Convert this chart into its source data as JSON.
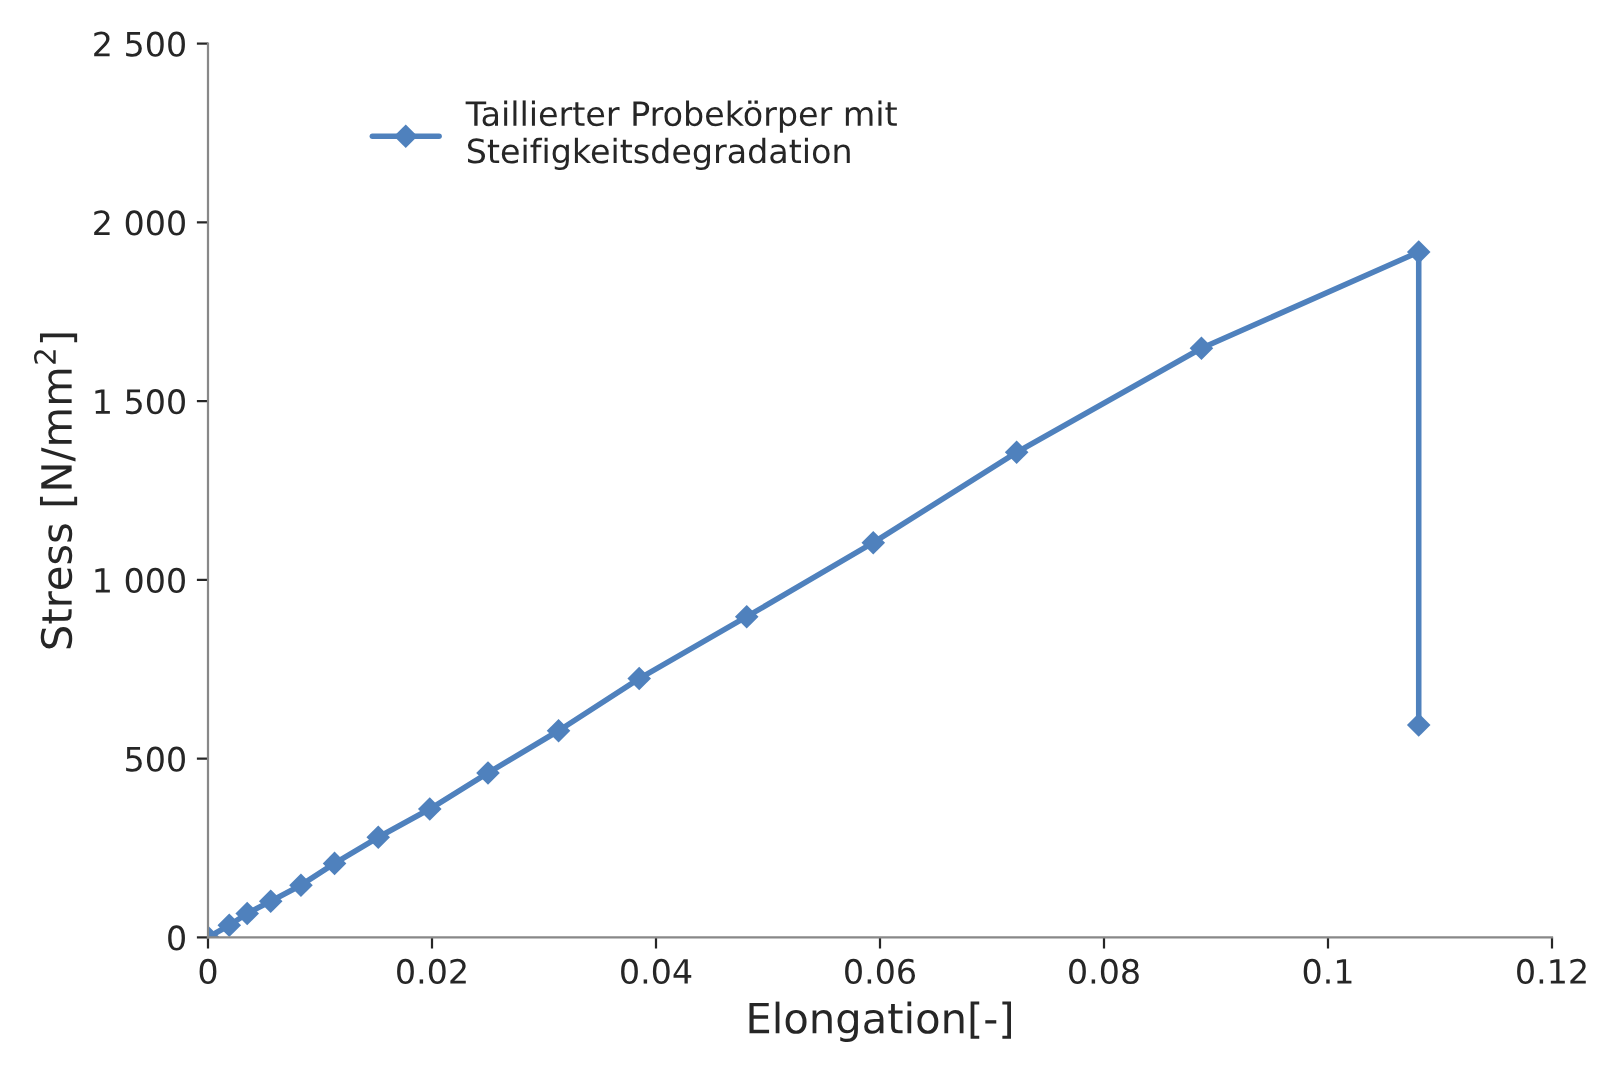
{
  "chart_data": {
    "type": "line",
    "xlabel": "Elongation[-]",
    "ylabel": "Stress [N/mm$^{2}$]",
    "xlim": [
      0,
      0.12
    ],
    "xticks": [
      0,
      0.02,
      0.04,
      0.06,
      0.08,
      0.1,
      0.12
    ],
    "ylim": [
      0,
      2500
    ],
    "yticks": [
      0,
      500,
      {
        "value": 1000,
        "label": "1 000"
      },
      {
        "value": 1500,
        "label": "1 500"
      },
      {
        "value": 2000,
        "label": "2 000"
      },
      {
        "value": 2500,
        "label": "2 500"
      }
    ],
    "grid": false,
    "legend": "top left",
    "marker": "diamond",
    "line_style": "solid",
    "series": [
      {
        "name": "Taillierter Probekörper mit\nSteifigkeitsdegradation",
        "color": "#4f81bd",
        "x": [
          0,
          0.0019,
          0.0035,
          0.0056,
          0.0083,
          0.0113,
          0.0152,
          0.0198,
          0.025,
          0.0313,
          0.0385,
          0.0481,
          0.0594,
          0.0722,
          0.0887,
          0.1081,
          0.1081
        ],
        "values": [
          0,
          34,
          67,
          101,
          146,
          207,
          280,
          359,
          460,
          578,
          724,
          897,
          1104,
          1357,
          1648,
          1917,
          594
        ]
      }
    ]
  }
}
